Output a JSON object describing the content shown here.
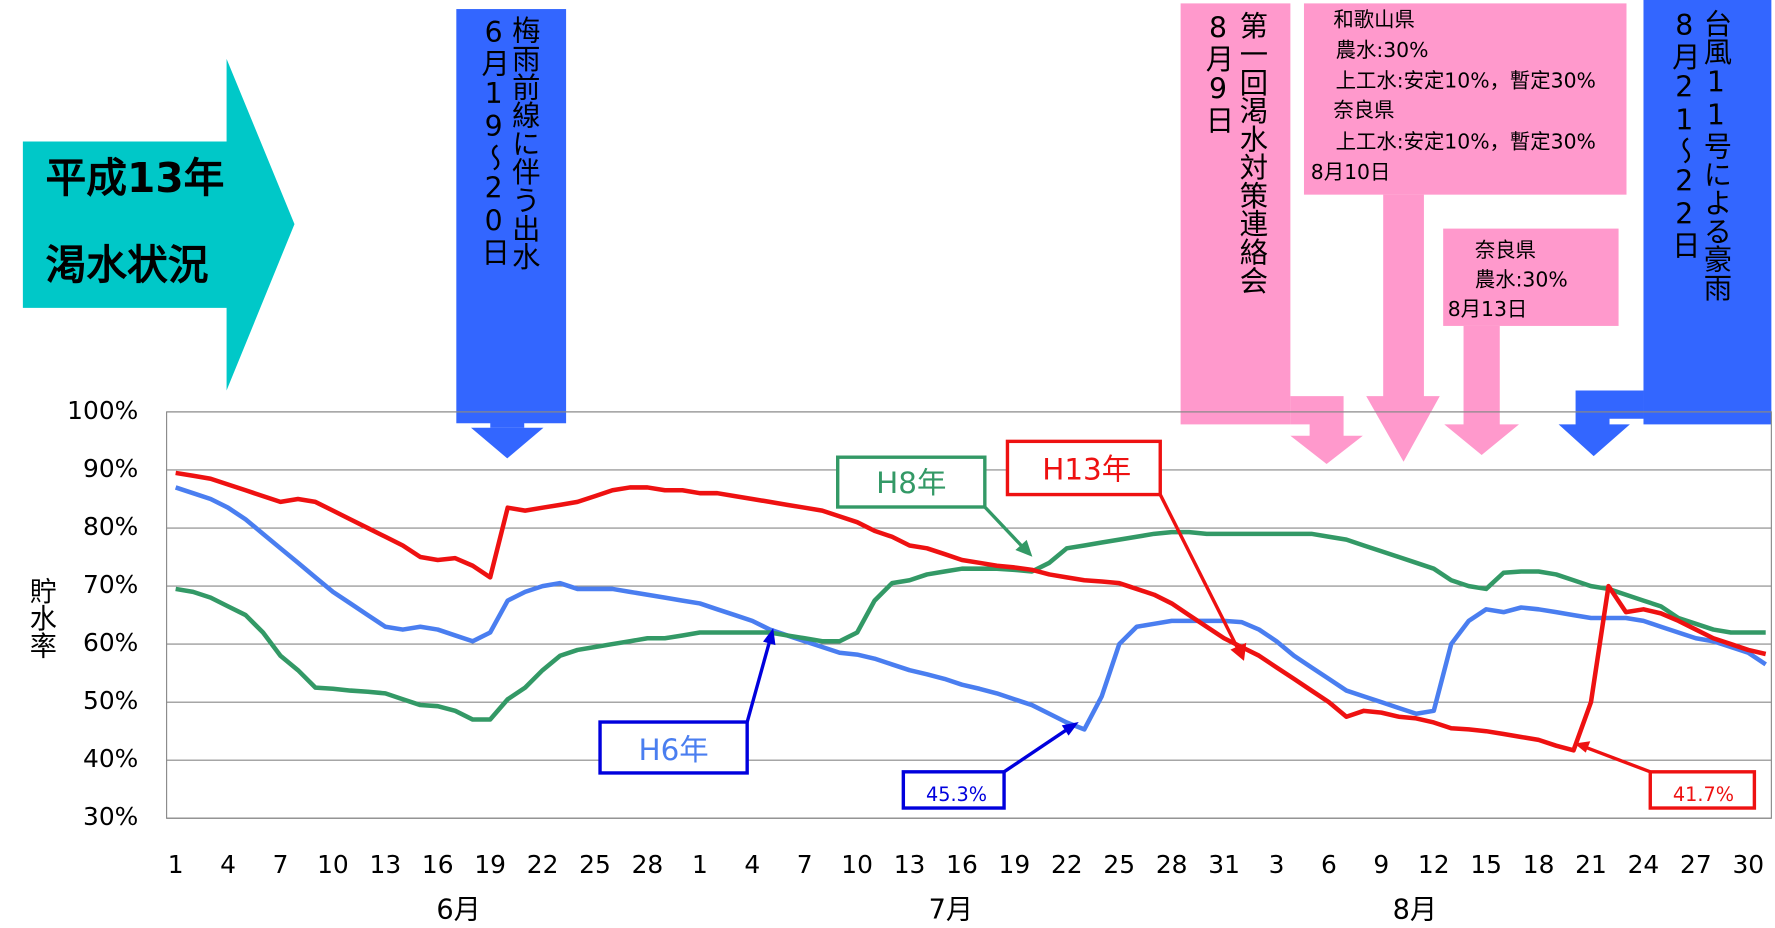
{
  "chart_data": {
    "type": "line",
    "title_lines": [
      "平成13年",
      "渇水状況"
    ],
    "ylabel": "貯水率",
    "months": [
      "6月",
      "7月",
      "8月"
    ],
    "categories": [
      "1",
      null,
      null,
      "4",
      null,
      null,
      "7",
      null,
      null,
      "10",
      null,
      null,
      "13",
      null,
      null,
      "16",
      null,
      null,
      "19",
      null,
      null,
      "22",
      null,
      null,
      "25",
      null,
      null,
      "28",
      null,
      null,
      "1",
      null,
      null,
      "4",
      null,
      null,
      "7",
      null,
      null,
      "10",
      null,
      null,
      "13",
      null,
      null,
      "16",
      null,
      null,
      "19",
      null,
      null,
      "22",
      null,
      null,
      "25",
      null,
      null,
      "28",
      null,
      null,
      "31",
      null,
      null,
      "3",
      null,
      null,
      "6",
      null,
      null,
      "9",
      null,
      null,
      "12",
      null,
      null,
      "15",
      null,
      null,
      "18",
      null,
      null,
      "21",
      null,
      null,
      "24",
      null,
      null,
      "27",
      null,
      null,
      "30",
      null
    ],
    "ylim": [
      30,
      100
    ],
    "yticks": [
      {
        "value": 30,
        "label": "30%"
      },
      {
        "value": 40,
        "label": "40%"
      },
      {
        "value": 50,
        "label": "50%"
      },
      {
        "value": 60,
        "label": "60%"
      },
      {
        "value": 70,
        "label": "70%"
      },
      {
        "value": 80,
        "label": "80%"
      },
      {
        "value": 90,
        "label": "90%"
      },
      {
        "value": 100,
        "label": "100%"
      }
    ],
    "grid": true,
    "series": [
      {
        "name": "H6年",
        "color": "#4a7ef0",
        "values": [
          87,
          86,
          85,
          83.5,
          81.5,
          79,
          76.5,
          74,
          71.5,
          69,
          67,
          65,
          63,
          62.5,
          63,
          62.5,
          61.5,
          60.5,
          62,
          67.5,
          69,
          70,
          70.5,
          69.5,
          69.5,
          69.5,
          69,
          68.5,
          68,
          67.5,
          67,
          66,
          65,
          64,
          62.5,
          61.5,
          60.5,
          59.5,
          58.5,
          58.2,
          57.5,
          56.5,
          55.5,
          54.8,
          54,
          53,
          52.3,
          51.5,
          50.5,
          49.5,
          48,
          46.5,
          45.3,
          51,
          60,
          63,
          63.5,
          64,
          64,
          64,
          64,
          63.8,
          62.5,
          60.5,
          58,
          56,
          54,
          52,
          51,
          50,
          49,
          48,
          48.5,
          60,
          64,
          66,
          65.5,
          66.3,
          66,
          65.5,
          65,
          64.5,
          64.5,
          64.5,
          64,
          63,
          62,
          61,
          60.5,
          59.5,
          58.5,
          56.5
        ]
      },
      {
        "name": "H8年",
        "color": "#339966",
        "values": [
          69.5,
          69,
          68,
          66.5,
          65,
          62,
          58,
          55.5,
          52.5,
          52.3,
          52,
          51.8,
          51.5,
          50.5,
          49.5,
          49.3,
          48.5,
          47,
          47,
          50.5,
          52.5,
          55.5,
          58,
          59,
          59.5,
          60,
          60.5,
          61,
          61,
          61.5,
          62,
          62,
          62,
          62,
          62,
          61.5,
          61,
          60.5,
          60.5,
          62,
          67.5,
          70.5,
          71,
          72,
          72.5,
          73,
          73,
          73,
          72.8,
          72.5,
          74,
          76.5,
          77,
          77.5,
          78,
          78.5,
          79,
          79.3,
          79.3,
          79,
          79,
          79,
          79,
          79,
          79,
          79,
          78.5,
          78,
          77,
          76,
          75,
          74,
          73,
          71,
          70,
          69.5,
          72.3,
          72.5,
          72.5,
          72,
          71,
          70,
          69.5,
          68.5,
          67.5,
          66.5,
          64.5,
          63.5,
          62.5,
          62,
          62,
          62
        ]
      },
      {
        "name": "H13年",
        "color": "#ee1111",
        "values": [
          89.5,
          89,
          88.5,
          87.5,
          86.5,
          85.5,
          84.5,
          85,
          84.5,
          83,
          81.5,
          80,
          78.5,
          77,
          75,
          74.5,
          74.8,
          73.5,
          71.5,
          83.5,
          83,
          83.5,
          84,
          84.5,
          85.5,
          86.5,
          87,
          87,
          86.5,
          86.5,
          86,
          86,
          85.5,
          85,
          84.5,
          84,
          83.5,
          83,
          82,
          81,
          79.5,
          78.5,
          77,
          76.5,
          75.5,
          74.5,
          74,
          73.5,
          73.2,
          72.8,
          72,
          71.5,
          71,
          70.8,
          70.5,
          69.5,
          68.5,
          67,
          65,
          63,
          61,
          59.5,
          58,
          56,
          54,
          52,
          50,
          47.5,
          48.5,
          48.2,
          47.5,
          47.2,
          46.5,
          45.5,
          45.3,
          45,
          44.5,
          44,
          43.5,
          42.5,
          41.7,
          50,
          70,
          65.5,
          66,
          65.3,
          64,
          62.5,
          61,
          60,
          59,
          58.3
        ]
      }
    ],
    "annotations": [
      {
        "lines": [
          "梅雨前線に伴う出水",
          "6月19～20日"
        ]
      },
      {
        "lines": [
          "第一回渇水対策連絡会",
          "8月9日"
        ]
      },
      {
        "lines": [
          "和歌山県",
          "農水:30%",
          "上工水:安定10%，暫定30%",
          "奈良県",
          "上工水:安定10%，暫定30%",
          "8月10日"
        ]
      },
      {
        "lines": [
          "奈良県",
          "農水:30%",
          "8月13日"
        ]
      },
      {
        "lines": [
          "台風11号による豪雨",
          "8月21～22日"
        ]
      },
      {
        "text": "45.3%"
      },
      {
        "text": "41.7%"
      }
    ]
  }
}
